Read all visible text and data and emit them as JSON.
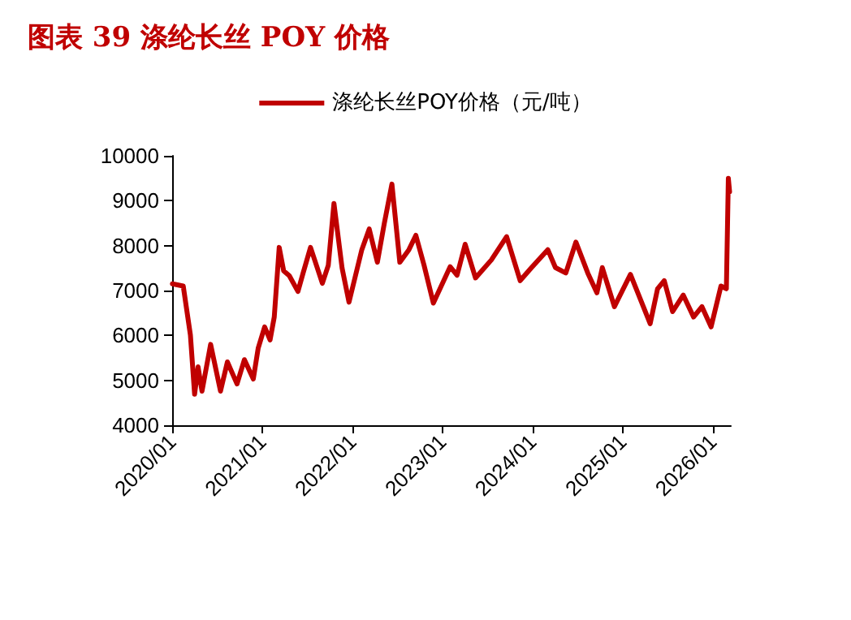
{
  "chart_data": {
    "type": "line",
    "title": "图表 39 涤纶长丝 POY 价格",
    "legend": "top",
    "grid": false,
    "marker": "none",
    "line_style": "solid",
    "x": [
      "2020-01-02",
      "2020-02-15",
      "2020-03-15",
      "2020-04-01",
      "2020-04-15",
      "2020-05-01",
      "2020-06-05",
      "2020-07-15",
      "2020-08-12",
      "2020-09-20",
      "2020-10-20",
      "2020-11-25",
      "2020-12-15",
      "2021-01-10",
      "2021-02-01",
      "2021-02-18",
      "2021-03-10",
      "2021-03-28",
      "2021-04-20",
      "2021-05-25",
      "2021-06-15",
      "2021-07-15",
      "2021-09-01",
      "2021-09-25",
      "2021-10-18",
      "2021-11-20",
      "2021-12-18",
      "2022-02-08",
      "2022-03-10",
      "2022-04-12",
      "2022-05-10",
      "2022-06-10",
      "2022-07-12",
      "2022-08-18",
      "2022-09-15",
      "2022-10-18",
      "2022-11-25",
      "2023-02-01",
      "2023-03-01",
      "2023-04-03",
      "2023-05-15",
      "2023-07-18",
      "2023-09-18",
      "2023-11-12",
      "2023-12-28",
      "2024-03-03",
      "2024-04-03",
      "2024-05-15",
      "2024-06-25",
      "2024-08-12",
      "2024-09-18",
      "2024-10-10",
      "2024-11-28",
      "2025-02-01",
      "2025-04-22",
      "2025-05-22",
      "2025-06-18",
      "2025-07-22",
      "2025-09-03",
      "2025-10-15",
      "2025-11-18",
      "2025-12-25",
      "2026-02-03",
      "2026-02-25",
      "2026-03-05",
      "2026-03-10"
    ],
    "series": [
      {
        "name": "涤纶长丝POY价格（元/吨）",
        "color": "#c00000",
        "values": [
          7150,
          7100,
          6010,
          4690,
          5300,
          4760,
          5800,
          4760,
          5410,
          4920,
          5460,
          5030,
          5720,
          6190,
          5900,
          6410,
          7960,
          7440,
          7330,
          6980,
          7390,
          7960,
          7160,
          7560,
          8940,
          7500,
          6740,
          7910,
          8370,
          7630,
          8490,
          9370,
          7630,
          7910,
          8230,
          7570,
          6720,
          7530,
          7340,
          8030,
          7280,
          7680,
          8200,
          7220,
          7510,
          7910,
          7510,
          7390,
          8080,
          7390,
          6950,
          7510,
          6640,
          7360,
          6260,
          7040,
          7220,
          6530,
          6900,
          6410,
          6640,
          6190,
          7100,
          7040,
          9500,
          9200
        ]
      }
    ],
    "xlim": [
      "2020-01-01",
      "2026-03-15"
    ],
    "xticks": [
      {
        "value": "2020-01",
        "label": "2020/01"
      },
      {
        "value": "2021-01",
        "label": "2021/01"
      },
      {
        "value": "2022-01",
        "label": "2022/01"
      },
      {
        "value": "2023-01",
        "label": "2023/01"
      },
      {
        "value": "2024-01",
        "label": "2024/01"
      },
      {
        "value": "2025-01",
        "label": "2025/01"
      },
      {
        "value": "2026-01",
        "label": "2026/01"
      }
    ],
    "ylim": [
      4000,
      10000
    ],
    "yticks": [
      4000,
      5000,
      6000,
      7000,
      8000,
      9000,
      10000
    ]
  }
}
